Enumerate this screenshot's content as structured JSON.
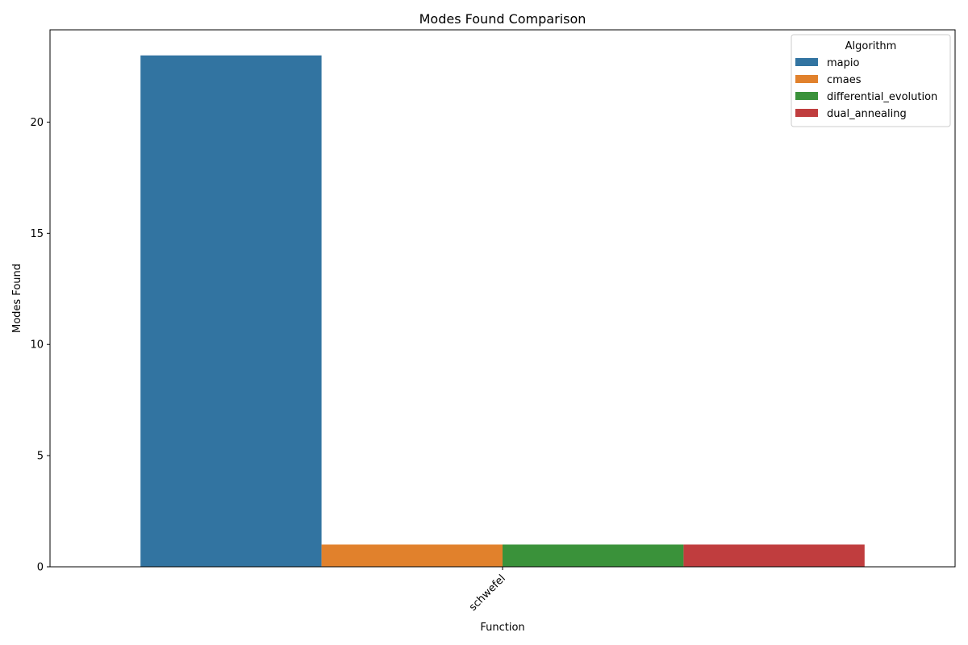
{
  "chart_data": {
    "type": "bar",
    "title": "Modes Found Comparison",
    "xlabel": "Function",
    "ylabel": "Modes Found",
    "categories": [
      "schwefel"
    ],
    "series": [
      {
        "name": "mapio",
        "values": [
          23
        ],
        "color": "#3274a1"
      },
      {
        "name": "cmaes",
        "values": [
          1
        ],
        "color": "#e1812c"
      },
      {
        "name": "differential_evolution",
        "values": [
          1
        ],
        "color": "#3a923a"
      },
      {
        "name": "dual_annealing",
        "values": [
          1
        ],
        "color": "#c03d3e"
      }
    ],
    "ylim": [
      0,
      24.15
    ],
    "yticks": [
      0,
      5,
      10,
      15,
      20
    ],
    "grid": false,
    "legend": {
      "title": "Algorithm",
      "placement": "top-right"
    }
  }
}
